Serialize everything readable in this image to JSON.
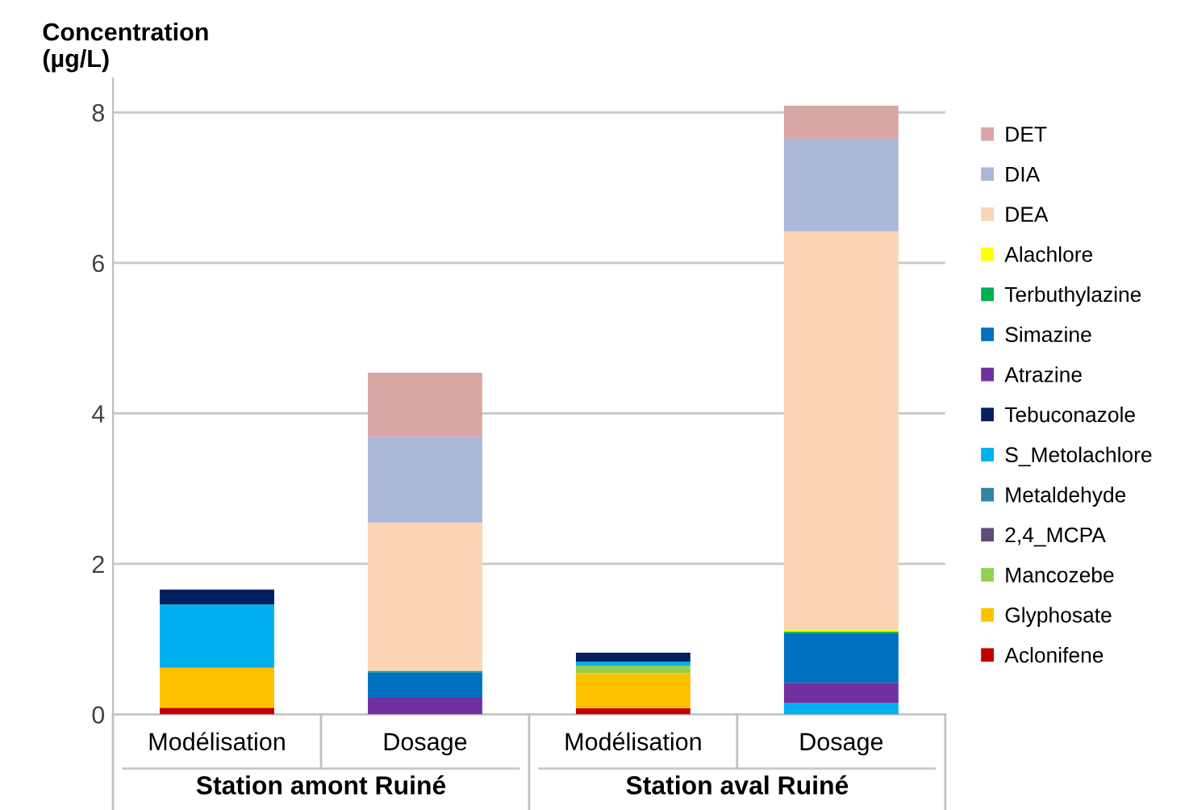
{
  "chart_data": {
    "type": "bar",
    "stacked": true,
    "ylabel": "Concentration\n(µg/L)",
    "categories": [
      "Modélisation",
      "Dosage",
      "Modélisation",
      "Dosage"
    ],
    "annotations": [
      "Station amont Ruiné",
      "Station aval Ruiné"
    ],
    "ylim": [
      0,
      8.45
    ],
    "yticks": [
      0,
      2,
      4,
      6,
      8
    ],
    "grid": "y",
    "legend": "right",
    "series": [
      {
        "name": "Aclonifene",
        "color": "#c00000",
        "values": [
          0.09,
          0,
          0.08,
          0
        ]
      },
      {
        "name": "Glyphosate",
        "color": "#ffc000",
        "values": [
          0.53,
          0,
          0.47,
          0
        ]
      },
      {
        "name": "Mancozebe",
        "color": "#92d050",
        "values": [
          0,
          0,
          0.1,
          0
        ]
      },
      {
        "name": "2,4_MCPA",
        "color": "#604a7b",
        "values": [
          0,
          0,
          0,
          0
        ]
      },
      {
        "name": "Metaldehyde",
        "color": "#31859c",
        "values": [
          0,
          0,
          0,
          0
        ]
      },
      {
        "name": "S_Metolachlore",
        "color": "#00b0f0",
        "values": [
          0.84,
          0,
          0.05,
          0.15
        ]
      },
      {
        "name": "Tebuconazole",
        "color": "#002060",
        "values": [
          0.2,
          0,
          0.12,
          0
        ]
      },
      {
        "name": "Atrazine",
        "color": "#7030a0",
        "values": [
          0,
          0.22,
          0,
          0.27
        ]
      },
      {
        "name": "Simazine",
        "color": "#0070c0",
        "values": [
          0,
          0.34,
          0,
          0.66
        ]
      },
      {
        "name": "Terbuthylazine",
        "color": "#00b050",
        "values": [
          0,
          0.02,
          0,
          0.02
        ]
      },
      {
        "name": "Alachlore",
        "color": "#ffff00",
        "values": [
          0,
          0,
          0,
          0.02
        ]
      },
      {
        "name": "DEA",
        "color": "#fad4b4",
        "values": [
          0,
          1.97,
          0,
          5.3
        ]
      },
      {
        "name": "DIA",
        "color": "#a9b8d6",
        "values": [
          0,
          1.14,
          0,
          1.23
        ]
      },
      {
        "name": "DET",
        "color": "#d9a6a6",
        "values": [
          0,
          0.85,
          0,
          0.44
        ]
      }
    ]
  }
}
